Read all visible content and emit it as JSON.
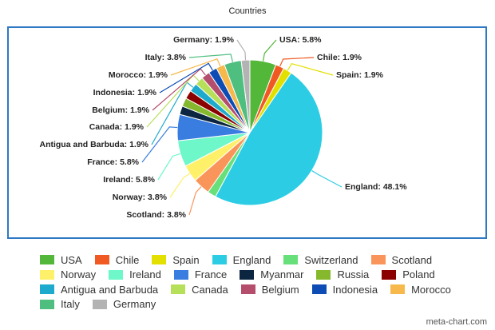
{
  "chart_data": {
    "type": "pie",
    "title": "Countries",
    "categories": [
      "USA",
      "Chile",
      "Spain",
      "England",
      "Switzerland",
      "Scotland",
      "Norway",
      "Ireland",
      "France",
      "Myanmar",
      "Russia",
      "Poland",
      "Antigua and Barbuda",
      "Canada",
      "Belgium",
      "Indonesia",
      "Morocco",
      "Italy",
      "Germany"
    ],
    "values": [
      5.8,
      1.9,
      1.9,
      48.1,
      1.9,
      3.8,
      3.8,
      5.8,
      5.8,
      1.9,
      1.9,
      1.9,
      1.9,
      1.9,
      1.9,
      1.9,
      1.9,
      3.8,
      1.9
    ],
    "value_labels": [
      "USA: 5.8%",
      "Chile: 1.9%",
      "Spain: 1.9%",
      "England: 48.1%",
      null,
      "Scotland: 3.8%",
      "Norway: 3.8%",
      "Ireland: 5.8%",
      "France: 5.8%",
      null,
      null,
      null,
      "Antigua and Barbuda: 1.9%",
      "Canada: 1.9%",
      "Belgium: 1.9%",
      "Indonesia: 1.9%",
      "Morocco: 1.9%",
      "Italy: 3.8%",
      "Germany: 1.9%"
    ],
    "colors": [
      "#53b83a",
      "#f05a22",
      "#e3e000",
      "#2ccde4",
      "#67e07a",
      "#f9955a",
      "#fff06a",
      "#6ef7c9",
      "#3a7de0",
      "#0c2540",
      "#86b82d",
      "#8b0000",
      "#1eaacc",
      "#b7e05a",
      "#b54d6c",
      "#0d4cb5",
      "#f7b84c",
      "#4fbf80",
      "#b3b3b3"
    ]
  },
  "credit": "meta-chart.com"
}
